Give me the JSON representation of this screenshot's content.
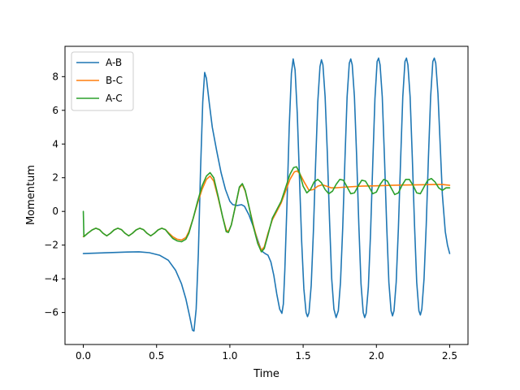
{
  "chart_data": {
    "type": "line",
    "title": "",
    "xlabel": "Time",
    "ylabel": "Momentum",
    "xlim": [
      -0.125,
      2.625
    ],
    "ylim": [
      -7.9,
      9.8
    ],
    "xticks": [
      0.0,
      0.5,
      1.0,
      1.5,
      2.0,
      2.5
    ],
    "xtick_labels": [
      "0.0",
      "0.5",
      "1.0",
      "1.5",
      "2.0",
      "2.5"
    ],
    "yticks": [
      -6,
      -4,
      -2,
      0,
      2,
      4,
      6,
      8
    ],
    "ytick_labels": [
      "−6",
      "−4",
      "−2",
      "0",
      "2",
      "4",
      "6",
      "8"
    ],
    "grid": false,
    "legend_position": "top-left",
    "series": [
      {
        "name": "A-B",
        "color": "#1f77b4",
        "points": [
          [
            0.0,
            -2.5
          ],
          [
            0.1,
            -2.47
          ],
          [
            0.2,
            -2.44
          ],
          [
            0.3,
            -2.41
          ],
          [
            0.38,
            -2.4
          ],
          [
            0.45,
            -2.45
          ],
          [
            0.52,
            -2.6
          ],
          [
            0.58,
            -2.9
          ],
          [
            0.63,
            -3.5
          ],
          [
            0.67,
            -4.3
          ],
          [
            0.7,
            -5.2
          ],
          [
            0.725,
            -6.2
          ],
          [
            0.745,
            -7.05
          ],
          [
            0.755,
            -7.1
          ],
          [
            0.77,
            -5.8
          ],
          [
            0.785,
            -2.5
          ],
          [
            0.8,
            2.5
          ],
          [
            0.815,
            6.5
          ],
          [
            0.828,
            8.25
          ],
          [
            0.84,
            7.9
          ],
          [
            0.86,
            6.4
          ],
          [
            0.88,
            5.0
          ],
          [
            0.91,
            3.6
          ],
          [
            0.94,
            2.3
          ],
          [
            0.97,
            1.3
          ],
          [
            1.0,
            0.6
          ],
          [
            1.02,
            0.4
          ],
          [
            1.05,
            0.35
          ],
          [
            1.08,
            0.4
          ],
          [
            1.1,
            0.3
          ],
          [
            1.13,
            -0.2
          ],
          [
            1.16,
            -0.9
          ],
          [
            1.19,
            -1.7
          ],
          [
            1.21,
            -2.2
          ],
          [
            1.225,
            -2.4
          ],
          [
            1.24,
            -2.5
          ],
          [
            1.26,
            -2.6
          ],
          [
            1.28,
            -3.0
          ],
          [
            1.3,
            -3.8
          ],
          [
            1.32,
            -4.9
          ],
          [
            1.34,
            -5.8
          ],
          [
            1.355,
            -6.05
          ],
          [
            1.365,
            -5.5
          ],
          [
            1.375,
            -3.5
          ],
          [
            1.39,
            0.5
          ],
          [
            1.405,
            5.0
          ],
          [
            1.42,
            8.2
          ],
          [
            1.432,
            9.05
          ],
          [
            1.445,
            8.4
          ],
          [
            1.46,
            5.8
          ],
          [
            1.475,
            2.0
          ],
          [
            1.49,
            -1.8
          ],
          [
            1.505,
            -4.6
          ],
          [
            1.52,
            -6.0
          ],
          [
            1.53,
            -6.25
          ],
          [
            1.54,
            -6.0
          ],
          [
            1.555,
            -4.4
          ],
          [
            1.57,
            -1.2
          ],
          [
            1.585,
            2.8
          ],
          [
            1.6,
            6.5
          ],
          [
            1.615,
            8.6
          ],
          [
            1.625,
            9.0
          ],
          [
            1.635,
            8.7
          ],
          [
            1.65,
            6.8
          ],
          [
            1.665,
            3.5
          ],
          [
            1.68,
            -0.5
          ],
          [
            1.695,
            -4.0
          ],
          [
            1.71,
            -5.8
          ],
          [
            1.725,
            -6.3
          ],
          [
            1.74,
            -5.9
          ],
          [
            1.755,
            -4.2
          ],
          [
            1.77,
            -1.0
          ],
          [
            1.785,
            3.0
          ],
          [
            1.8,
            6.8
          ],
          [
            1.815,
            8.8
          ],
          [
            1.825,
            9.05
          ],
          [
            1.835,
            8.7
          ],
          [
            1.85,
            6.8
          ],
          [
            1.865,
            3.3
          ],
          [
            1.88,
            -0.8
          ],
          [
            1.895,
            -4.3
          ],
          [
            1.91,
            -6.0
          ],
          [
            1.92,
            -6.3
          ],
          [
            1.93,
            -6.05
          ],
          [
            1.945,
            -4.5
          ],
          [
            1.96,
            -1.3
          ],
          [
            1.975,
            2.8
          ],
          [
            1.99,
            6.7
          ],
          [
            2.005,
            8.9
          ],
          [
            2.015,
            9.1
          ],
          [
            2.025,
            8.7
          ],
          [
            2.04,
            6.8
          ],
          [
            2.055,
            3.2
          ],
          [
            2.07,
            -0.8
          ],
          [
            2.085,
            -4.2
          ],
          [
            2.1,
            -5.9
          ],
          [
            2.11,
            -6.2
          ],
          [
            2.12,
            -5.9
          ],
          [
            2.135,
            -4.2
          ],
          [
            2.15,
            -1.0
          ],
          [
            2.165,
            3.0
          ],
          [
            2.18,
            6.8
          ],
          [
            2.195,
            8.9
          ],
          [
            2.205,
            9.1
          ],
          [
            2.215,
            8.7
          ],
          [
            2.23,
            6.8
          ],
          [
            2.245,
            3.2
          ],
          [
            2.26,
            -0.8
          ],
          [
            2.275,
            -4.2
          ],
          [
            2.29,
            -5.9
          ],
          [
            2.3,
            -6.15
          ],
          [
            2.31,
            -5.8
          ],
          [
            2.325,
            -4.0
          ],
          [
            2.34,
            -0.8
          ],
          [
            2.355,
            3.2
          ],
          [
            2.37,
            6.8
          ],
          [
            2.385,
            8.9
          ],
          [
            2.395,
            9.1
          ],
          [
            2.405,
            8.8
          ],
          [
            2.42,
            7.0
          ],
          [
            2.435,
            4.0
          ],
          [
            2.45,
            1.0
          ],
          [
            2.47,
            -1.2
          ],
          [
            2.485,
            -2.0
          ],
          [
            2.5,
            -2.5
          ]
        ]
      },
      {
        "name": "B-C",
        "color": "#ff7f0e",
        "points": [
          [
            0.0,
            -1.5
          ],
          [
            0.03,
            -1.3
          ],
          [
            0.06,
            -1.1
          ],
          [
            0.085,
            -1.0
          ],
          [
            0.11,
            -1.08
          ],
          [
            0.135,
            -1.3
          ],
          [
            0.16,
            -1.45
          ],
          [
            0.185,
            -1.3
          ],
          [
            0.21,
            -1.1
          ],
          [
            0.235,
            -1.0
          ],
          [
            0.26,
            -1.08
          ],
          [
            0.285,
            -1.3
          ],
          [
            0.31,
            -1.45
          ],
          [
            0.335,
            -1.3
          ],
          [
            0.36,
            -1.1
          ],
          [
            0.385,
            -1.0
          ],
          [
            0.41,
            -1.08
          ],
          [
            0.435,
            -1.3
          ],
          [
            0.46,
            -1.45
          ],
          [
            0.485,
            -1.3
          ],
          [
            0.51,
            -1.1
          ],
          [
            0.535,
            -1.0
          ],
          [
            0.56,
            -1.08
          ],
          [
            0.585,
            -1.3
          ],
          [
            0.61,
            -1.5
          ],
          [
            0.64,
            -1.65
          ],
          [
            0.67,
            -1.7
          ],
          [
            0.7,
            -1.55
          ],
          [
            0.72,
            -1.2
          ],
          [
            0.75,
            -0.4
          ],
          [
            0.78,
            0.5
          ],
          [
            0.81,
            1.3
          ],
          [
            0.84,
            1.9
          ],
          [
            0.865,
            2.1
          ],
          [
            0.89,
            1.8
          ],
          [
            0.92,
            0.8
          ],
          [
            0.95,
            -0.3
          ],
          [
            0.975,
            -1.1
          ],
          [
            0.99,
            -1.2
          ],
          [
            1.01,
            -0.8
          ],
          [
            1.04,
            0.4
          ],
          [
            1.065,
            1.4
          ],
          [
            1.085,
            1.6
          ],
          [
            1.105,
            1.2
          ],
          [
            1.13,
            0.3
          ],
          [
            1.16,
            -0.8
          ],
          [
            1.19,
            -1.8
          ],
          [
            1.215,
            -2.3
          ],
          [
            1.235,
            -2.1
          ],
          [
            1.26,
            -1.3
          ],
          [
            1.29,
            -0.5
          ],
          [
            1.32,
            0.0
          ],
          [
            1.35,
            0.5
          ],
          [
            1.38,
            1.2
          ],
          [
            1.41,
            1.9
          ],
          [
            1.44,
            2.35
          ],
          [
            1.46,
            2.4
          ],
          [
            1.48,
            2.2
          ],
          [
            1.51,
            1.7
          ],
          [
            1.54,
            1.25
          ],
          [
            1.57,
            1.3
          ],
          [
            1.6,
            1.5
          ],
          [
            1.63,
            1.58
          ],
          [
            1.66,
            1.5
          ],
          [
            1.69,
            1.4
          ],
          [
            1.72,
            1.4
          ],
          [
            1.75,
            1.42
          ],
          [
            1.8,
            1.45
          ],
          [
            1.9,
            1.5
          ],
          [
            2.0,
            1.52
          ],
          [
            2.1,
            1.55
          ],
          [
            2.2,
            1.57
          ],
          [
            2.3,
            1.58
          ],
          [
            2.4,
            1.6
          ],
          [
            2.45,
            1.6
          ],
          [
            2.5,
            1.55
          ]
        ]
      },
      {
        "name": "A-C",
        "color": "#2ca02c",
        "points": [
          [
            0.0,
            0.0
          ],
          [
            0.004,
            -1.5
          ],
          [
            0.03,
            -1.3
          ],
          [
            0.06,
            -1.1
          ],
          [
            0.085,
            -1.0
          ],
          [
            0.11,
            -1.08
          ],
          [
            0.135,
            -1.3
          ],
          [
            0.16,
            -1.45
          ],
          [
            0.185,
            -1.3
          ],
          [
            0.21,
            -1.1
          ],
          [
            0.235,
            -1.0
          ],
          [
            0.26,
            -1.08
          ],
          [
            0.285,
            -1.3
          ],
          [
            0.31,
            -1.45
          ],
          [
            0.335,
            -1.3
          ],
          [
            0.36,
            -1.1
          ],
          [
            0.385,
            -1.0
          ],
          [
            0.41,
            -1.08
          ],
          [
            0.435,
            -1.3
          ],
          [
            0.46,
            -1.45
          ],
          [
            0.485,
            -1.3
          ],
          [
            0.51,
            -1.1
          ],
          [
            0.535,
            -1.0
          ],
          [
            0.56,
            -1.08
          ],
          [
            0.585,
            -1.35
          ],
          [
            0.61,
            -1.6
          ],
          [
            0.64,
            -1.75
          ],
          [
            0.67,
            -1.8
          ],
          [
            0.7,
            -1.65
          ],
          [
            0.72,
            -1.3
          ],
          [
            0.75,
            -0.4
          ],
          [
            0.78,
            0.6
          ],
          [
            0.81,
            1.5
          ],
          [
            0.84,
            2.1
          ],
          [
            0.865,
            2.3
          ],
          [
            0.89,
            2.0
          ],
          [
            0.92,
            0.9
          ],
          [
            0.95,
            -0.3
          ],
          [
            0.975,
            -1.2
          ],
          [
            0.99,
            -1.25
          ],
          [
            1.01,
            -0.8
          ],
          [
            1.04,
            0.4
          ],
          [
            1.065,
            1.45
          ],
          [
            1.085,
            1.65
          ],
          [
            1.105,
            1.25
          ],
          [
            1.13,
            0.3
          ],
          [
            1.16,
            -0.9
          ],
          [
            1.19,
            -1.9
          ],
          [
            1.215,
            -2.4
          ],
          [
            1.235,
            -2.2
          ],
          [
            1.26,
            -1.4
          ],
          [
            1.29,
            -0.4
          ],
          [
            1.32,
            0.1
          ],
          [
            1.35,
            0.6
          ],
          [
            1.38,
            1.4
          ],
          [
            1.41,
            2.2
          ],
          [
            1.435,
            2.6
          ],
          [
            1.455,
            2.65
          ],
          [
            1.475,
            2.3
          ],
          [
            1.5,
            1.5
          ],
          [
            1.525,
            1.1
          ],
          [
            1.55,
            1.3
          ],
          [
            1.575,
            1.75
          ],
          [
            1.6,
            1.9
          ],
          [
            1.625,
            1.7
          ],
          [
            1.65,
            1.3
          ],
          [
            1.675,
            1.05
          ],
          [
            1.7,
            1.2
          ],
          [
            1.725,
            1.6
          ],
          [
            1.75,
            1.9
          ],
          [
            1.775,
            1.85
          ],
          [
            1.8,
            1.45
          ],
          [
            1.825,
            1.05
          ],
          [
            1.85,
            1.1
          ],
          [
            1.875,
            1.5
          ],
          [
            1.9,
            1.85
          ],
          [
            1.925,
            1.8
          ],
          [
            1.95,
            1.45
          ],
          [
            1.975,
            1.05
          ],
          [
            2.0,
            1.15
          ],
          [
            2.025,
            1.6
          ],
          [
            2.05,
            1.9
          ],
          [
            2.075,
            1.8
          ],
          [
            2.1,
            1.4
          ],
          [
            2.125,
            1.0
          ],
          [
            2.15,
            1.1
          ],
          [
            2.175,
            1.55
          ],
          [
            2.2,
            1.9
          ],
          [
            2.225,
            1.9
          ],
          [
            2.25,
            1.55
          ],
          [
            2.275,
            1.1
          ],
          [
            2.3,
            1.05
          ],
          [
            2.325,
            1.45
          ],
          [
            2.35,
            1.85
          ],
          [
            2.375,
            1.95
          ],
          [
            2.4,
            1.75
          ],
          [
            2.425,
            1.4
          ],
          [
            2.45,
            1.25
          ],
          [
            2.475,
            1.4
          ],
          [
            2.5,
            1.4
          ]
        ]
      }
    ]
  }
}
